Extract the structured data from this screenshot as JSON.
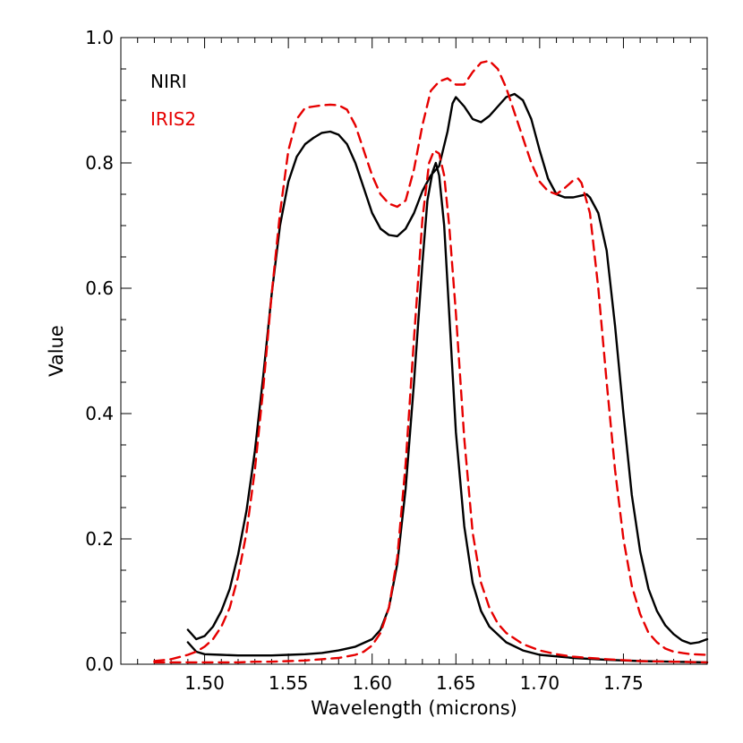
{
  "chart_data": {
    "type": "line",
    "title": "",
    "xlabel": "Wavelength (microns)",
    "ylabel": "Value",
    "xlim": [
      1.45,
      1.8
    ],
    "ylim": [
      0.0,
      1.0
    ],
    "x_ticks": [
      1.5,
      1.55,
      1.6,
      1.65,
      1.7,
      1.75
    ],
    "x_tick_labels": [
      "1.50",
      "1.55",
      "1.60",
      "1.65",
      "1.70",
      "1.75"
    ],
    "y_ticks": [
      0.0,
      0.2,
      0.4,
      0.6,
      0.8,
      1.0
    ],
    "y_tick_labels": [
      "0.0",
      "0.2",
      "0.4",
      "0.6",
      "0.8",
      "1.0"
    ],
    "x_minor_step": 0.01,
    "y_minor_step": 0.05,
    "grid": false,
    "legend_position": "top-left",
    "legend": [
      {
        "label": "NIRI",
        "color": "#000000"
      },
      {
        "label": "IRIS2",
        "color": "#e60000"
      }
    ],
    "series": [
      {
        "name": "NIRI",
        "curve": "broad filter",
        "color": "#000000",
        "dash": "solid",
        "x": [
          1.49,
          1.495,
          1.5,
          1.505,
          1.51,
          1.515,
          1.52,
          1.525,
          1.53,
          1.535,
          1.54,
          1.545,
          1.55,
          1.555,
          1.56,
          1.565,
          1.57,
          1.575,
          1.58,
          1.585,
          1.59,
          1.595,
          1.6,
          1.605,
          1.61,
          1.615,
          1.62,
          1.625,
          1.63,
          1.635,
          1.64,
          1.645,
          1.648,
          1.65,
          1.655,
          1.66,
          1.665,
          1.67,
          1.675,
          1.68,
          1.685,
          1.69,
          1.695,
          1.7,
          1.705,
          1.71,
          1.715,
          1.72,
          1.725,
          1.728,
          1.73,
          1.735,
          1.74,
          1.745,
          1.75,
          1.755,
          1.76,
          1.765,
          1.77,
          1.775,
          1.78,
          1.785,
          1.79,
          1.795,
          1.8
        ],
        "y": [
          0.055,
          0.04,
          0.045,
          0.06,
          0.085,
          0.12,
          0.175,
          0.245,
          0.34,
          0.46,
          0.59,
          0.7,
          0.77,
          0.81,
          0.83,
          0.84,
          0.848,
          0.85,
          0.845,
          0.83,
          0.8,
          0.76,
          0.72,
          0.695,
          0.685,
          0.683,
          0.695,
          0.72,
          0.755,
          0.78,
          0.795,
          0.85,
          0.895,
          0.905,
          0.89,
          0.87,
          0.865,
          0.875,
          0.89,
          0.905,
          0.91,
          0.9,
          0.87,
          0.82,
          0.775,
          0.75,
          0.745,
          0.745,
          0.748,
          0.75,
          0.745,
          0.72,
          0.66,
          0.54,
          0.4,
          0.27,
          0.18,
          0.12,
          0.085,
          0.062,
          0.048,
          0.038,
          0.033,
          0.035,
          0.04
        ]
      },
      {
        "name": "NIRI",
        "curve": "narrow filter",
        "color": "#000000",
        "dash": "solid",
        "x": [
          1.49,
          1.495,
          1.5,
          1.51,
          1.52,
          1.53,
          1.54,
          1.55,
          1.56,
          1.57,
          1.58,
          1.59,
          1.6,
          1.605,
          1.61,
          1.615,
          1.62,
          1.625,
          1.63,
          1.633,
          1.636,
          1.638,
          1.64,
          1.643,
          1.646,
          1.65,
          1.655,
          1.66,
          1.665,
          1.67,
          1.68,
          1.69,
          1.7,
          1.72,
          1.74,
          1.76,
          1.78,
          1.8
        ],
        "y": [
          0.035,
          0.02,
          0.016,
          0.015,
          0.014,
          0.014,
          0.014,
          0.015,
          0.016,
          0.018,
          0.022,
          0.028,
          0.04,
          0.055,
          0.09,
          0.16,
          0.28,
          0.45,
          0.64,
          0.74,
          0.785,
          0.8,
          0.78,
          0.7,
          0.56,
          0.37,
          0.22,
          0.13,
          0.085,
          0.06,
          0.035,
          0.022,
          0.015,
          0.01,
          0.007,
          0.005,
          0.004,
          0.003
        ]
      },
      {
        "name": "IRIS2",
        "curve": "broad filter",
        "color": "#e60000",
        "dash": "dashed",
        "x": [
          1.47,
          1.48,
          1.49,
          1.495,
          1.5,
          1.505,
          1.51,
          1.515,
          1.52,
          1.525,
          1.53,
          1.535,
          1.54,
          1.545,
          1.55,
          1.555,
          1.56,
          1.565,
          1.57,
          1.575,
          1.58,
          1.585,
          1.59,
          1.595,
          1.6,
          1.605,
          1.61,
          1.615,
          1.62,
          1.625,
          1.63,
          1.635,
          1.64,
          1.645,
          1.65,
          1.655,
          1.66,
          1.665,
          1.67,
          1.675,
          1.68,
          1.685,
          1.69,
          1.695,
          1.7,
          1.705,
          1.71,
          1.715,
          1.72,
          1.723,
          1.725,
          1.73,
          1.735,
          1.74,
          1.745,
          1.75,
          1.755,
          1.76,
          1.765,
          1.77,
          1.775,
          1.78,
          1.79,
          1.8
        ],
        "y": [
          0.005,
          0.008,
          0.015,
          0.02,
          0.028,
          0.04,
          0.06,
          0.09,
          0.14,
          0.21,
          0.31,
          0.44,
          0.59,
          0.72,
          0.82,
          0.87,
          0.888,
          0.89,
          0.892,
          0.893,
          0.892,
          0.885,
          0.86,
          0.82,
          0.78,
          0.75,
          0.735,
          0.73,
          0.74,
          0.79,
          0.86,
          0.915,
          0.93,
          0.935,
          0.925,
          0.925,
          0.945,
          0.96,
          0.963,
          0.95,
          0.92,
          0.88,
          0.84,
          0.8,
          0.77,
          0.755,
          0.75,
          0.76,
          0.772,
          0.775,
          0.768,
          0.72,
          0.6,
          0.45,
          0.31,
          0.2,
          0.125,
          0.08,
          0.05,
          0.035,
          0.025,
          0.02,
          0.016,
          0.015
        ]
      },
      {
        "name": "IRIS2",
        "curve": "narrow filter",
        "color": "#e60000",
        "dash": "dashed",
        "x": [
          1.47,
          1.48,
          1.49,
          1.5,
          1.51,
          1.52,
          1.53,
          1.54,
          1.55,
          1.56,
          1.57,
          1.58,
          1.59,
          1.595,
          1.6,
          1.605,
          1.61,
          1.615,
          1.62,
          1.625,
          1.63,
          1.634,
          1.637,
          1.64,
          1.643,
          1.646,
          1.65,
          1.655,
          1.66,
          1.665,
          1.67,
          1.675,
          1.68,
          1.69,
          1.7,
          1.71,
          1.72,
          1.74,
          1.76,
          1.78,
          1.8
        ],
        "y": [
          0.003,
          0.003,
          0.003,
          0.003,
          0.003,
          0.003,
          0.004,
          0.004,
          0.005,
          0.006,
          0.008,
          0.01,
          0.015,
          0.02,
          0.03,
          0.05,
          0.09,
          0.17,
          0.32,
          0.52,
          0.71,
          0.8,
          0.82,
          0.815,
          0.78,
          0.7,
          0.56,
          0.36,
          0.21,
          0.13,
          0.09,
          0.065,
          0.05,
          0.032,
          0.022,
          0.016,
          0.012,
          0.008,
          0.005,
          0.004,
          0.003
        ]
      }
    ]
  }
}
